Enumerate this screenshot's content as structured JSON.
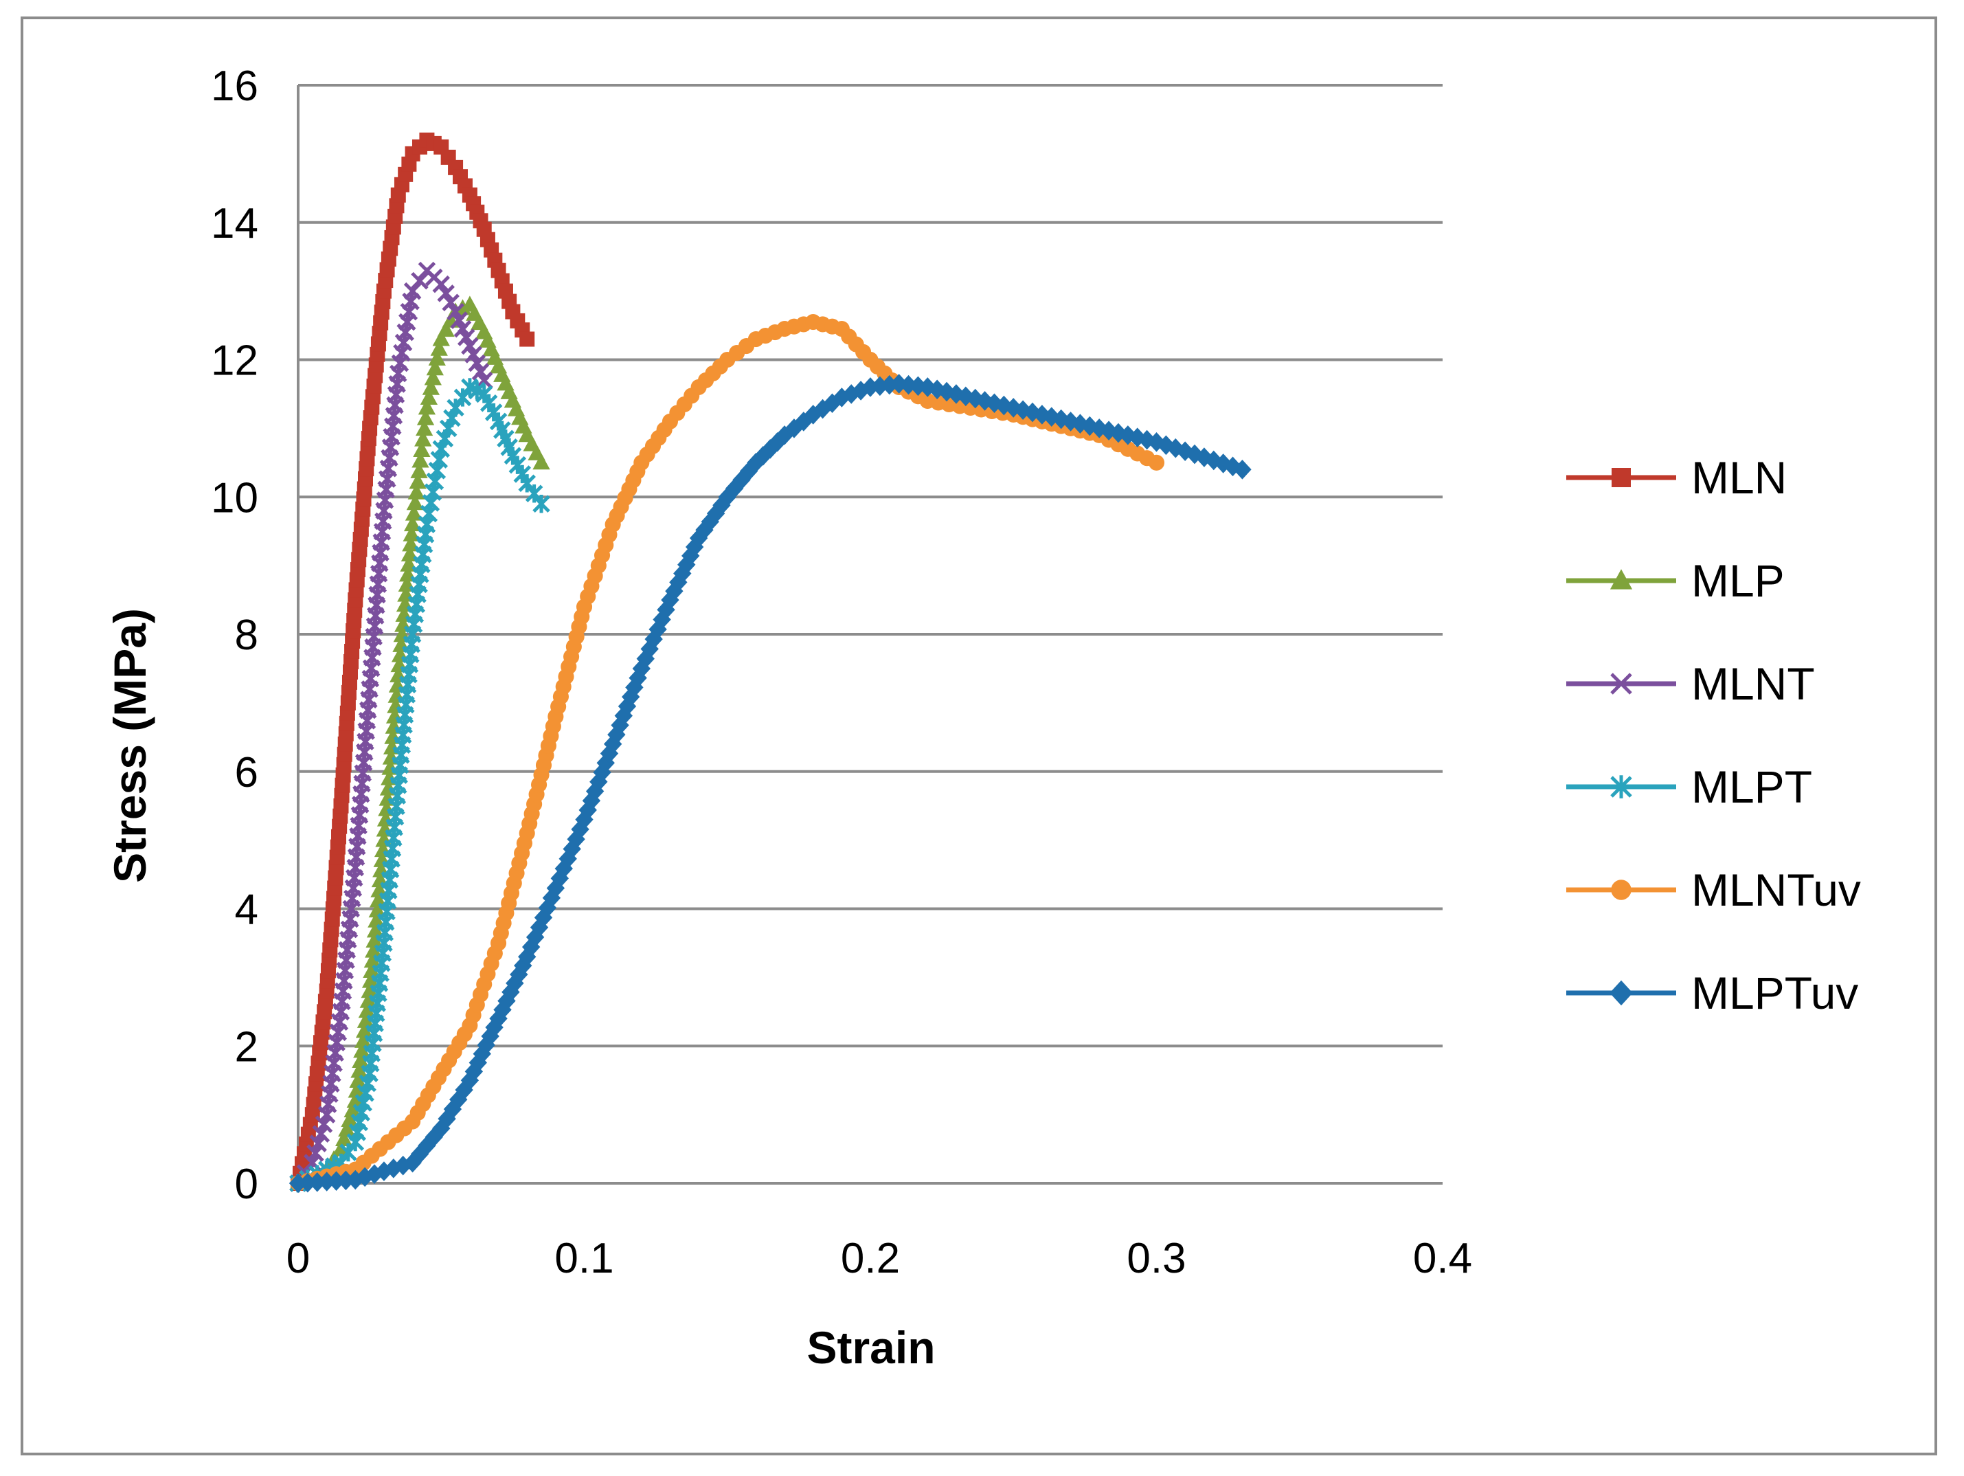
{
  "chart_data": {
    "type": "scatter",
    "title": "",
    "xlabel": "Strain",
    "ylabel": "Stress (MPa)",
    "xlim": [
      0,
      0.4
    ],
    "ylim": [
      0,
      16
    ],
    "xticks": [
      "0",
      "0.1",
      "0.2",
      "0.3",
      "0.4"
    ],
    "yticks": [
      "0",
      "2",
      "4",
      "6",
      "8",
      "10",
      "12",
      "14",
      "16"
    ],
    "grid": "horizontal",
    "legend_position": "right",
    "series": [
      {
        "name": "MLN",
        "color": "#c0392b",
        "marker": "square",
        "x": [
          0,
          0.005,
          0.01,
          0.015,
          0.02,
          0.025,
          0.03,
          0.035,
          0.04,
          0.045,
          0.05,
          0.055,
          0.06,
          0.065,
          0.07,
          0.075,
          0.08
        ],
        "y": [
          0,
          1.0,
          2.8,
          5.5,
          8.5,
          11.0,
          13.0,
          14.4,
          15.0,
          15.2,
          15.1,
          14.8,
          14.4,
          13.9,
          13.3,
          12.7,
          12.3
        ]
      },
      {
        "name": "MLP",
        "color": "#7fa33b",
        "marker": "triangle",
        "x": [
          0,
          0.01,
          0.015,
          0.02,
          0.025,
          0.03,
          0.035,
          0.04,
          0.045,
          0.05,
          0.055,
          0.06,
          0.065,
          0.07,
          0.075,
          0.08,
          0.085
        ],
        "y": [
          0,
          0.2,
          0.5,
          1.2,
          2.8,
          5.0,
          7.4,
          9.6,
          11.3,
          12.3,
          12.7,
          12.8,
          12.4,
          11.9,
          11.4,
          10.9,
          10.5
        ]
      },
      {
        "name": "MLNT",
        "color": "#7b4f9d",
        "marker": "x",
        "x": [
          0,
          0.005,
          0.01,
          0.015,
          0.02,
          0.025,
          0.03,
          0.035,
          0.04,
          0.045,
          0.05,
          0.055,
          0.06,
          0.065
        ],
        "y": [
          0,
          0.3,
          1.0,
          2.5,
          4.6,
          7.2,
          9.8,
          11.8,
          13.0,
          13.3,
          13.1,
          12.7,
          12.2,
          11.7
        ]
      },
      {
        "name": "MLPT",
        "color": "#2aa3bd",
        "marker": "star",
        "x": [
          0,
          0.01,
          0.015,
          0.02,
          0.025,
          0.03,
          0.035,
          0.04,
          0.045,
          0.05,
          0.055,
          0.06,
          0.065,
          0.07,
          0.075,
          0.08,
          0.085
        ],
        "y": [
          0,
          0.2,
          0.3,
          0.6,
          1.6,
          3.5,
          5.8,
          8.0,
          9.6,
          10.7,
          11.3,
          11.6,
          11.5,
          11.1,
          10.6,
          10.2,
          9.9
        ]
      },
      {
        "name": "MLNTuv",
        "color": "#f39233",
        "marker": "circle",
        "x": [
          0,
          0.02,
          0.04,
          0.06,
          0.07,
          0.08,
          0.09,
          0.1,
          0.11,
          0.12,
          0.13,
          0.14,
          0.15,
          0.16,
          0.17,
          0.18,
          0.19,
          0.2,
          0.21,
          0.22,
          0.25,
          0.28,
          0.3
        ],
        "y": [
          0,
          0.2,
          0.9,
          2.3,
          3.5,
          5.1,
          6.8,
          8.4,
          9.6,
          10.5,
          11.1,
          11.6,
          12.0,
          12.3,
          12.45,
          12.55,
          12.45,
          12.0,
          11.6,
          11.4,
          11.2,
          10.9,
          10.5
        ]
      },
      {
        "name": "MLPTuv",
        "color": "#1f6fad",
        "marker": "diamond",
        "x": [
          0,
          0.02,
          0.04,
          0.05,
          0.06,
          0.07,
          0.08,
          0.09,
          0.1,
          0.11,
          0.12,
          0.13,
          0.14,
          0.15,
          0.16,
          0.17,
          0.18,
          0.19,
          0.2,
          0.21,
          0.22,
          0.24,
          0.26,
          0.28,
          0.3,
          0.33
        ],
        "y": [
          0,
          0.05,
          0.3,
          0.8,
          1.5,
          2.4,
          3.3,
          4.3,
          5.3,
          6.4,
          7.5,
          8.5,
          9.4,
          10.0,
          10.5,
          10.9,
          11.2,
          11.45,
          11.6,
          11.65,
          11.6,
          11.4,
          11.2,
          11.0,
          10.8,
          10.4
        ]
      }
    ]
  }
}
